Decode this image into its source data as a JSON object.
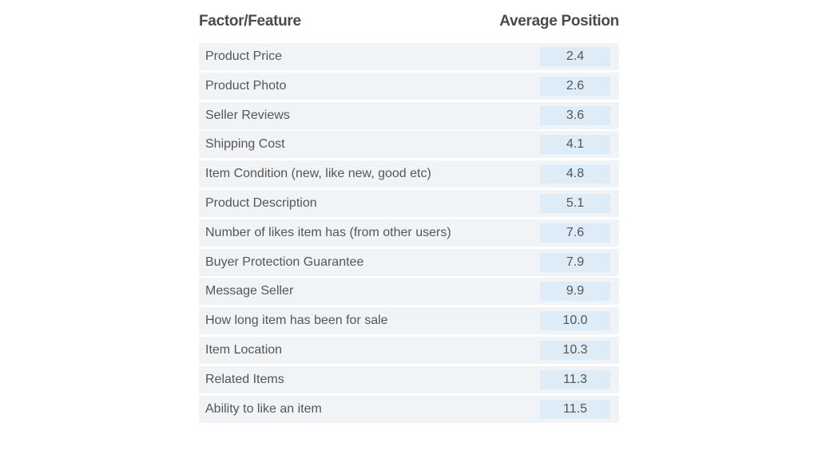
{
  "chart_data": {
    "type": "table",
    "columns": [
      "Factor/Feature",
      "Average Position"
    ],
    "rows": [
      {
        "factor": "Product Price",
        "value": "2.4"
      },
      {
        "factor": "Product Photo",
        "value": "2.6"
      },
      {
        "factor": "Seller Reviews",
        "value": "3.6"
      },
      {
        "factor": "Shipping Cost",
        "value": "4.1"
      },
      {
        "factor": "Item Condition (new, like new, good etc)",
        "value": "4.8"
      },
      {
        "factor": "Product Description",
        "value": "5.1"
      },
      {
        "factor": "Number of likes item has (from other users)",
        "value": "7.6"
      },
      {
        "factor": "Buyer Protection Guarantee",
        "value": "7.9"
      },
      {
        "factor": "Message Seller",
        "value": "9.9"
      },
      {
        "factor": "How long item has been for sale",
        "value": "10.0"
      },
      {
        "factor": "Item Location",
        "value": "10.3"
      },
      {
        "factor": "Related Items",
        "value": "11.3"
      },
      {
        "factor": "Ability to like an item",
        "value": "11.5"
      }
    ]
  },
  "colors": {
    "row_background": "#f1f4f6",
    "value_background": "#deecf7",
    "header_text": "#4a4a4a",
    "body_text": "#555555"
  }
}
